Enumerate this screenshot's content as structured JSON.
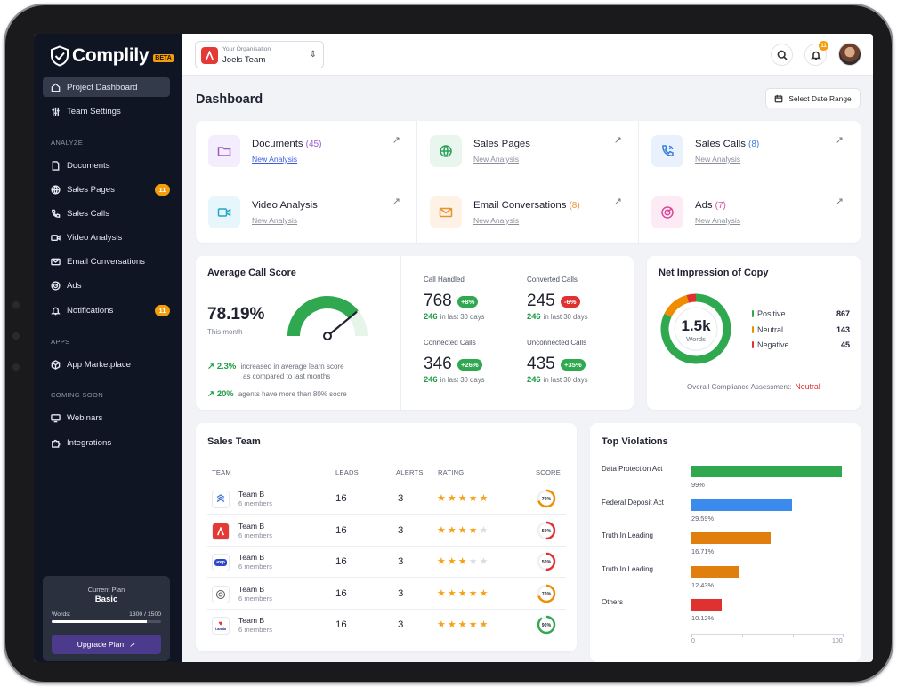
{
  "app": {
    "logo_text": "Complily",
    "beta_badge": "BETA"
  },
  "sidebar": {
    "top_items": [
      {
        "label": "Project Dashboard",
        "icon": "home-icon",
        "active": true
      },
      {
        "label": "Team Settings",
        "icon": "sliders-icon"
      }
    ],
    "sections": {
      "analyze": "ANALYZE",
      "apps": "APPS",
      "coming_soon": "COMING SOON"
    },
    "analyze_items": [
      {
        "label": "Documents",
        "icon": "document-icon"
      },
      {
        "label": "Sales Pages",
        "icon": "globe-icon",
        "badge": "11"
      },
      {
        "label": "Sales Calls",
        "icon": "phone-icon"
      },
      {
        "label": "Video Analysis",
        "icon": "video-icon"
      },
      {
        "label": "Email Conversations",
        "icon": "mail-icon"
      },
      {
        "label": "Ads",
        "icon": "target-icon"
      },
      {
        "label": "Notifications",
        "icon": "bell-icon",
        "badge": "11"
      }
    ],
    "apps_items": [
      {
        "label": "App Marketplace",
        "icon": "box-icon"
      }
    ],
    "coming_soon_items": [
      {
        "label": "Webinars",
        "icon": "monitor-icon"
      },
      {
        "label": "Integrations",
        "icon": "puzzle-icon"
      }
    ],
    "plan": {
      "label": "Current Plan",
      "name": "Basic",
      "words_label": "Words:",
      "words_value": "1300 / 1500",
      "words_fraction": 0.867,
      "upgrade_label": "Upgrade Plan"
    }
  },
  "topbar": {
    "org_caption": "Your Organisation",
    "org_name": "Joels Team",
    "notification_count": "11"
  },
  "page": {
    "title": "Dashboard",
    "date_range_label": "Select Date Range"
  },
  "analysis": [
    {
      "title": "Documents",
      "count": "(45)",
      "link": "New Analysis",
      "icon": "folder-icon",
      "color": "#9b59d0",
      "bg": "#f4edfb",
      "primary": true
    },
    {
      "title": "Sales Pages",
      "count": "",
      "link": "New Analysis",
      "icon": "globe-icon",
      "color": "#2e9e5b",
      "bg": "#e8f6ee"
    },
    {
      "title": "Sales Calls",
      "count": "(8)",
      "link": "New Analysis",
      "icon": "phone-icon",
      "color": "#3b7ddd",
      "bg": "#e9f1fc"
    },
    {
      "title": "Video Analysis",
      "count": "",
      "link": "New Analysis",
      "icon": "video-icon",
      "color": "#22a6c9",
      "bg": "#e6f6fb"
    },
    {
      "title": "Email Conversations",
      "count": "(8)",
      "link": "New Analysis",
      "icon": "mail-icon",
      "color": "#e8912d",
      "bg": "#fdf2e5"
    },
    {
      "title": "Ads",
      "count": "(7)",
      "link": "New Analysis",
      "icon": "target-icon",
      "color": "#d94a9a",
      "bg": "#fcebf4"
    }
  ],
  "call_score": {
    "title": "Average Call Score",
    "value": "78.19%",
    "period": "This month",
    "gauge_fraction": 0.78,
    "trends": [
      {
        "value": "2.3%",
        "text": "increased in average learn score",
        "text2": "as compared to last months"
      },
      {
        "value": "20%",
        "text": "agents have more than 80% socre",
        "text2": ""
      }
    ],
    "stats": [
      {
        "label": "Call Handled",
        "value": "768",
        "change": "+8%",
        "positive": true,
        "foot_value": "246",
        "foot_text": "in last 30 days"
      },
      {
        "label": "Converted Calls",
        "value": "245",
        "change": "-6%",
        "positive": false,
        "foot_value": "246",
        "foot_text": "in last 30 days"
      },
      {
        "label": "Connected Calls",
        "value": "346",
        "change": "+26%",
        "positive": true,
        "foot_value": "246",
        "foot_text": "in last 30 days"
      },
      {
        "label": "Unconnected Calls",
        "value": "435",
        "change": "+35%",
        "positive": true,
        "foot_value": "246",
        "foot_text": "in last 30 days"
      }
    ]
  },
  "impression": {
    "title": "Net Impression of Copy",
    "center_value": "1.5k",
    "center_label": "Words",
    "legend": [
      {
        "label": "Positive",
        "value": "867",
        "count": 867,
        "color": "#2fa84f"
      },
      {
        "label": "Neutral",
        "value": "143",
        "count": 143,
        "color": "#f08c00"
      },
      {
        "label": "Negative",
        "value": "45",
        "count": 45,
        "color": "#e03131"
      }
    ],
    "compliance_label": "Overall Compliance Assessment:",
    "compliance_value": "Neutral"
  },
  "sales_team": {
    "title": "Sales Team",
    "headers": [
      "TEAM",
      "LEADS",
      "ALERTS",
      "RATING",
      "SCORE"
    ],
    "rows": [
      {
        "name": "Team B",
        "members": "6 members",
        "leads": "16",
        "alerts": "3",
        "rating": 5,
        "score": "70%",
        "score_value": 0.7,
        "score_color": "#f08c00",
        "logo": "wave-logo"
      },
      {
        "name": "Team B",
        "members": "6 members",
        "leads": "16",
        "alerts": "3",
        "rating": 4,
        "score": "50%",
        "score_value": 0.5,
        "score_color": "#e03131",
        "logo": "a-logo"
      },
      {
        "name": "Team B",
        "members": "6 members",
        "leads": "16",
        "alerts": "3",
        "rating": 3,
        "score": "50%",
        "score_value": 0.5,
        "score_color": "#e03131",
        "logo": "vlogo"
      },
      {
        "name": "Team B",
        "members": "6 members",
        "leads": "16",
        "alerts": "3",
        "rating": 5,
        "score": "70%",
        "score_value": 0.7,
        "score_color": "#f08c00",
        "logo": "ring-logo"
      },
      {
        "name": "Team B",
        "members": "6 members",
        "leads": "16",
        "alerts": "3",
        "rating": 5,
        "score": "90%",
        "score_value": 0.9,
        "score_color": "#2fa84f",
        "logo": "heart-logo"
      }
    ]
  },
  "violations": {
    "title": "Top Violations",
    "items": [
      {
        "label": "Data Protection Act",
        "value": 99,
        "pct": "99%",
        "color": "#2fa84f"
      },
      {
        "label": "Federal Deposit Act",
        "value": 66,
        "pct": "29.59%",
        "color": "#3b8bef"
      },
      {
        "label": "Truth In Leading",
        "value": 52,
        "pct": "16.71%",
        "color": "#e07f0e"
      },
      {
        "label": "Truth In Leading",
        "value": 31,
        "pct": "12.43%",
        "color": "#e07f0e"
      },
      {
        "label": "Others",
        "value": 20,
        "pct": "10.12%",
        "color": "#e03131"
      }
    ],
    "axis_min": "0",
    "axis_max": "100"
  }
}
